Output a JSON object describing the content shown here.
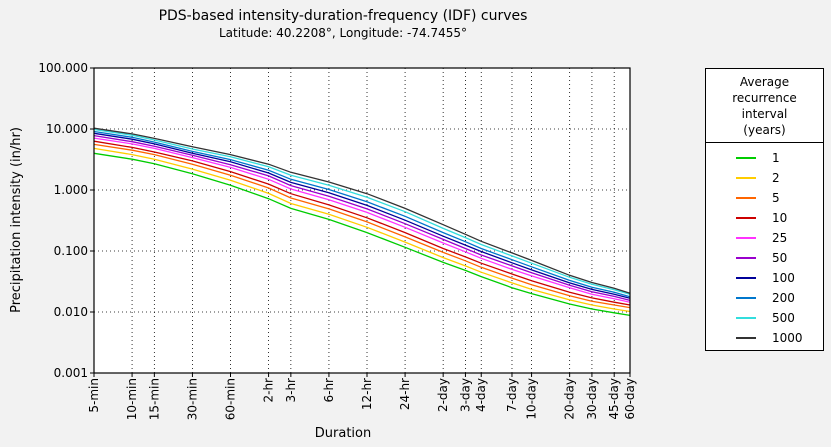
{
  "chart_data": {
    "type": "line",
    "title": "PDS-based intensity-duration-frequency (IDF) curves",
    "subtitle": "Latitude: 40.2208°, Longitude: -74.7455°",
    "xlabel": "Duration",
    "ylabel": "Precipitation intensity (in/hr)",
    "y_scale": "log",
    "ylim": [
      0.001,
      100
    ],
    "y_ticks": [
      "0.001",
      "0.010",
      "0.100",
      "1.000",
      "10.000",
      "100.000"
    ],
    "grid": "dotted",
    "legend_position": "right",
    "x": [
      "5-min",
      "10-min",
      "15-min",
      "30-min",
      "60-min",
      "2-hr",
      "3-hr",
      "6-hr",
      "12-hr",
      "24-hr",
      "2-day",
      "3-day",
      "4-day",
      "7-day",
      "10-day",
      "20-day",
      "30-day",
      "45-day",
      "60-day"
    ],
    "legend_title": [
      "Average recurrence",
      "interval",
      "(years)"
    ],
    "series": [
      {
        "name": "1",
        "color": "#00cc00",
        "values": [
          4.0,
          3.2,
          2.7,
          1.85,
          1.2,
          0.72,
          0.5,
          0.33,
          0.2,
          0.115,
          0.065,
          0.048,
          0.038,
          0.025,
          0.02,
          0.0135,
          0.0112,
          0.0097,
          0.0088
        ]
      },
      {
        "name": "2",
        "color": "#ffcc00",
        "values": [
          4.8,
          3.8,
          3.2,
          2.2,
          1.45,
          0.88,
          0.6,
          0.4,
          0.245,
          0.14,
          0.078,
          0.057,
          0.045,
          0.03,
          0.0235,
          0.0158,
          0.013,
          0.0112,
          0.0102
        ]
      },
      {
        "name": "5",
        "color": "#ff6600",
        "values": [
          5.6,
          4.5,
          3.8,
          2.65,
          1.75,
          1.08,
          0.74,
          0.49,
          0.3,
          0.17,
          0.095,
          0.069,
          0.054,
          0.036,
          0.028,
          0.0185,
          0.015,
          0.013,
          0.0118
        ]
      },
      {
        "name": "10",
        "color": "#cc0000",
        "values": [
          6.3,
          5.0,
          4.2,
          3.0,
          2.0,
          1.25,
          0.87,
          0.57,
          0.35,
          0.2,
          0.11,
          0.08,
          0.063,
          0.042,
          0.0325,
          0.021,
          0.017,
          0.0145,
          0.013
        ]
      },
      {
        "name": "25",
        "color": "#ff33ff",
        "values": [
          7.1,
          5.7,
          4.8,
          3.4,
          2.35,
          1.5,
          1.04,
          0.69,
          0.43,
          0.245,
          0.135,
          0.097,
          0.076,
          0.05,
          0.039,
          0.025,
          0.0195,
          0.0165,
          0.0145
        ]
      },
      {
        "name": "50",
        "color": "#9900cc",
        "values": [
          7.8,
          6.2,
          5.2,
          3.7,
          2.6,
          1.7,
          1.18,
          0.79,
          0.49,
          0.28,
          0.155,
          0.11,
          0.086,
          0.057,
          0.044,
          0.0275,
          0.0215,
          0.018,
          0.0155
        ]
      },
      {
        "name": "100",
        "color": "#000099",
        "values": [
          8.5,
          6.8,
          5.7,
          4.0,
          2.9,
          1.9,
          1.33,
          0.9,
          0.56,
          0.32,
          0.175,
          0.125,
          0.098,
          0.064,
          0.049,
          0.03,
          0.0235,
          0.0195,
          0.0168
        ]
      },
      {
        "name": "200",
        "color": "#0077cc",
        "values": [
          9.1,
          7.3,
          6.1,
          4.3,
          3.15,
          2.1,
          1.5,
          1.02,
          0.64,
          0.37,
          0.2,
          0.142,
          0.11,
          0.072,
          0.055,
          0.033,
          0.0255,
          0.021,
          0.0178
        ]
      },
      {
        "name": "500",
        "color": "#33dddd",
        "values": [
          9.8,
          7.9,
          6.6,
          4.7,
          3.5,
          2.4,
          1.75,
          1.2,
          0.76,
          0.44,
          0.235,
          0.166,
          0.128,
          0.083,
          0.063,
          0.037,
          0.0285,
          0.0232,
          0.0195
        ]
      },
      {
        "name": "1000",
        "color": "#333333",
        "values": [
          10.3,
          8.3,
          7.0,
          5.1,
          3.8,
          2.65,
          1.95,
          1.35,
          0.87,
          0.5,
          0.27,
          0.188,
          0.144,
          0.093,
          0.07,
          0.04,
          0.0305,
          0.0245,
          0.0203
        ]
      }
    ]
  }
}
